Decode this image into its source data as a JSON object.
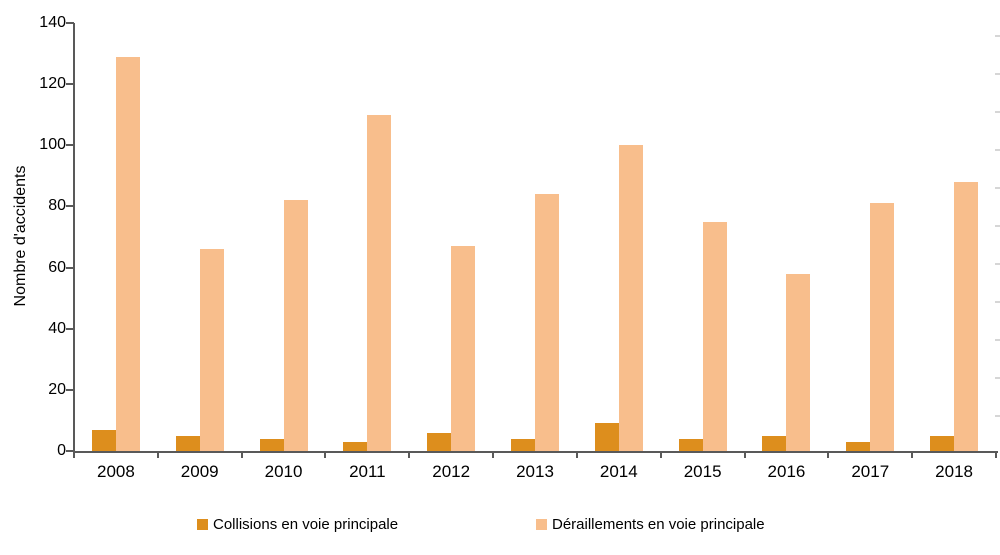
{
  "chart_data": {
    "type": "bar",
    "title": "",
    "xlabel": "",
    "ylabel": "Nombre d'accidents",
    "categories": [
      "2008",
      "2009",
      "2010",
      "2011",
      "2012",
      "2013",
      "2014",
      "2015",
      "2016",
      "2017",
      "2018"
    ],
    "series": [
      {
        "name": "Collisions en voie principale",
        "key": "collisions",
        "color": "#dd8e1d",
        "values": [
          7,
          5,
          4,
          3,
          6,
          4,
          9,
          4,
          5,
          3,
          5
        ]
      },
      {
        "name": "Déraillements en voie principale",
        "key": "deraillements",
        "color": "#f8be8c",
        "values": [
          129,
          66,
          82,
          110,
          67,
          84,
          100,
          75,
          58,
          81,
          88
        ]
      }
    ],
    "ylim": [
      0,
      140
    ],
    "yticks": [
      0,
      20,
      40,
      60,
      80,
      100,
      120,
      140
    ],
    "grid": false,
    "legend_position": "bottom",
    "right_axis_minor_ticks": 11
  }
}
